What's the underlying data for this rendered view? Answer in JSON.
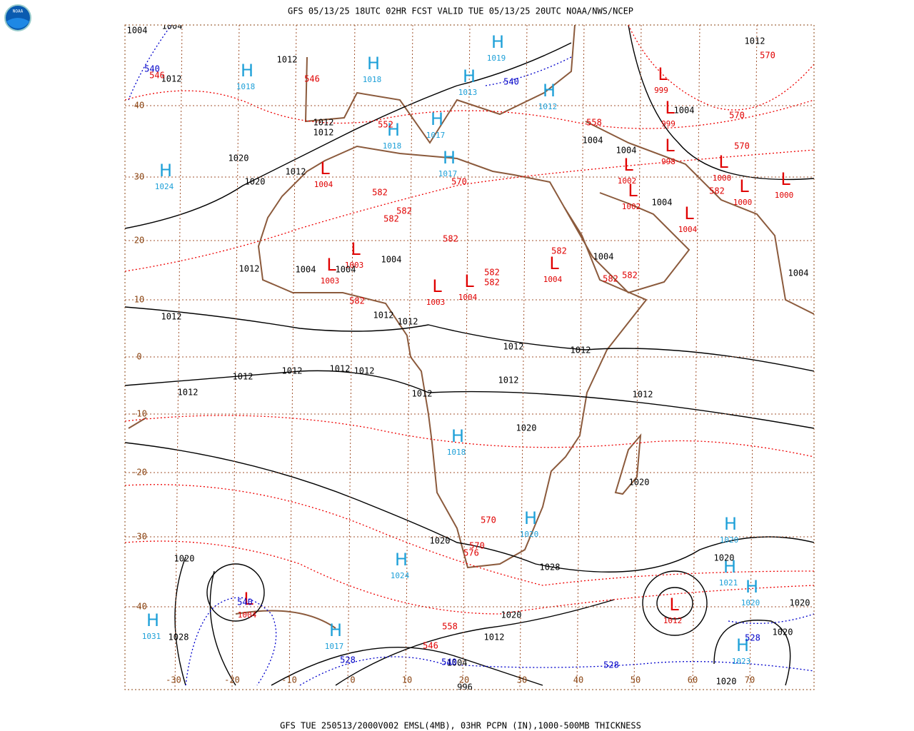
{
  "header": {
    "title": "GFS 05/13/25 18UTC 02HR FCST VALID TUE 05/13/25 20UTC NOAA/NWS/NCEP"
  },
  "footer": {
    "caption": "GFS TUE 250513/2000V002 EMSL(4MB), 03HR PCPN (IN),1000-500MB THICKNESS"
  },
  "logo": {
    "label": "NOAA"
  },
  "grid": {
    "lat_labels": [
      40,
      30,
      20,
      10,
      0,
      -10,
      -20,
      -30,
      -40
    ],
    "lon_labels": [
      -30,
      -20,
      -10,
      0,
      10,
      20,
      30,
      40,
      50,
      60,
      70
    ]
  },
  "highs": [
    {
      "letter": "H",
      "value": 1018
    },
    {
      "letter": "H",
      "value": 1018
    },
    {
      "letter": "H",
      "value": 1019
    },
    {
      "letter": "H",
      "value": 1013
    },
    {
      "letter": "H",
      "value": 1012
    },
    {
      "letter": "H",
      "value": 1017
    },
    {
      "letter": "H",
      "value": 1018
    },
    {
      "letter": "H",
      "value": 1017
    },
    {
      "letter": "H",
      "value": 1024
    },
    {
      "letter": "H",
      "value": 1018
    },
    {
      "letter": "H",
      "value": 1020
    },
    {
      "letter": "H",
      "value": 1024
    },
    {
      "letter": "H",
      "value": 1031
    },
    {
      "letter": "H",
      "value": 1017
    },
    {
      "letter": "H",
      "value": 1020
    },
    {
      "letter": "H",
      "value": 1021
    },
    {
      "letter": "H",
      "value": 1020
    },
    {
      "letter": "H",
      "value": 1023
    }
  ],
  "lows": [
    {
      "letter": "L",
      "value": 1004
    },
    {
      "letter": "L",
      "value": 1003
    },
    {
      "letter": "L",
      "value": 1003
    },
    {
      "letter": "L",
      "value": 1003
    },
    {
      "letter": "L",
      "value": 1004
    },
    {
      "letter": "L",
      "value": 1004
    },
    {
      "letter": "L",
      "value": 999
    },
    {
      "letter": "L",
      "value": 999
    },
    {
      "letter": "L",
      "value": 998
    },
    {
      "letter": "L",
      "value": 1002
    },
    {
      "letter": "L",
      "value": 1002
    },
    {
      "letter": "L",
      "value": 1004
    },
    {
      "letter": "L",
      "value": 1000
    },
    {
      "letter": "L",
      "value": 1000
    },
    {
      "letter": "L",
      "value": 1000
    },
    {
      "letter": "L",
      "value": 1012
    },
    {
      "letter": "L",
      "value": 1004
    }
  ],
  "isobar_labels": [
    1012,
    1012,
    1012,
    1012,
    1020,
    1012,
    1020,
    1004,
    1004,
    1004,
    1012,
    1012,
    1012,
    1012,
    1012,
    1012,
    1012,
    1012,
    1012,
    1012,
    1012,
    1012,
    1012,
    1012,
    1020,
    1020,
    1020,
    1028,
    1020,
    1028,
    1020,
    1012,
    1004,
    996,
    1020,
    1020,
    1020,
    1012,
    1004,
    1004,
    1004,
    1004,
    1004,
    1004,
    1020,
    1004,
    1004
  ],
  "thickness_labels": [
    570,
    546,
    552,
    558,
    570,
    570,
    570,
    582,
    582,
    582,
    582,
    582,
    582,
    582,
    582,
    582,
    582,
    582,
    570,
    570,
    576,
    558,
    546,
    546
  ],
  "cold_thickness_labels": [
    540,
    540,
    540,
    528,
    528,
    528,
    540
  ]
}
